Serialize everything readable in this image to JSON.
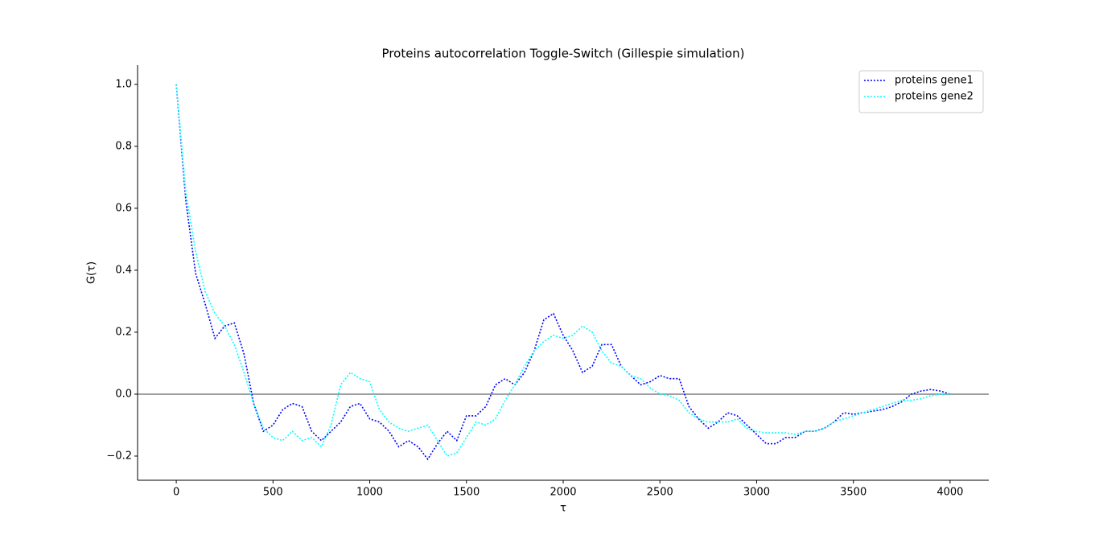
{
  "chart_data": {
    "type": "line",
    "title": "Proteins autocorrelation Toggle-Switch (Gillespie simulation)",
    "x_label": "τ",
    "y_label": "G(τ)",
    "x": [
      0,
      50,
      100,
      150,
      200,
      250,
      300,
      350,
      400,
      450,
      500,
      550,
      600,
      650,
      700,
      750,
      800,
      850,
      900,
      950,
      1000,
      1050,
      1100,
      1150,
      1200,
      1250,
      1300,
      1350,
      1400,
      1450,
      1500,
      1550,
      1600,
      1650,
      1700,
      1750,
      1800,
      1850,
      1900,
      1950,
      2000,
      2050,
      2100,
      2150,
      2200,
      2250,
      2300,
      2350,
      2400,
      2450,
      2500,
      2550,
      2600,
      2650,
      2700,
      2750,
      2800,
      2850,
      2900,
      2950,
      3000,
      3050,
      3100,
      3150,
      3200,
      3250,
      3300,
      3350,
      3400,
      3450,
      3500,
      3550,
      3600,
      3650,
      3700,
      3750,
      3800,
      3850,
      3900,
      3950,
      4000
    ],
    "series": [
      {
        "name": "proteins gene1",
        "color": "#0000ff",
        "values": [
          1.0,
          0.62,
          0.39,
          0.29,
          0.18,
          0.22,
          0.23,
          0.13,
          -0.03,
          -0.12,
          -0.1,
          -0.05,
          -0.03,
          -0.04,
          -0.12,
          -0.15,
          -0.12,
          -0.09,
          -0.04,
          -0.03,
          -0.08,
          -0.09,
          -0.12,
          -0.17,
          -0.15,
          -0.17,
          -0.21,
          -0.16,
          -0.12,
          -0.15,
          -0.07,
          -0.07,
          -0.04,
          0.03,
          0.05,
          0.03,
          0.07,
          0.14,
          0.24,
          0.26,
          0.19,
          0.14,
          0.07,
          0.09,
          0.16,
          0.16,
          0.09,
          0.06,
          0.03,
          0.04,
          0.06,
          0.05,
          0.05,
          -0.04,
          -0.08,
          -0.11,
          -0.09,
          -0.06,
          -0.07,
          -0.1,
          -0.13,
          -0.16,
          -0.16,
          -0.14,
          -0.14,
          -0.12,
          -0.12,
          -0.11,
          -0.09,
          -0.06,
          -0.065,
          -0.06,
          -0.055,
          -0.05,
          -0.04,
          -0.025,
          0.0,
          0.01,
          0.015,
          0.01,
          0.0
        ]
      },
      {
        "name": "proteins gene2",
        "color": "#00ffff",
        "values": [
          1.0,
          0.65,
          0.46,
          0.33,
          0.26,
          0.22,
          0.16,
          0.07,
          -0.03,
          -0.11,
          -0.14,
          -0.15,
          -0.12,
          -0.15,
          -0.14,
          -0.17,
          -0.1,
          0.03,
          0.07,
          0.05,
          0.04,
          -0.05,
          -0.09,
          -0.11,
          -0.12,
          -0.11,
          -0.1,
          -0.15,
          -0.2,
          -0.19,
          -0.14,
          -0.09,
          -0.1,
          -0.08,
          -0.02,
          0.03,
          0.09,
          0.14,
          0.17,
          0.19,
          0.18,
          0.19,
          0.22,
          0.2,
          0.14,
          0.1,
          0.09,
          0.06,
          0.05,
          0.02,
          0.0,
          -0.005,
          -0.02,
          -0.06,
          -0.08,
          -0.09,
          -0.09,
          -0.09,
          -0.08,
          -0.11,
          -0.12,
          -0.125,
          -0.125,
          -0.125,
          -0.13,
          -0.12,
          -0.12,
          -0.11,
          -0.09,
          -0.08,
          -0.07,
          -0.06,
          -0.05,
          -0.04,
          -0.03,
          -0.02,
          -0.02,
          -0.015,
          -0.005,
          0.0,
          0.0
        ]
      }
    ],
    "xlim": [
      -200,
      4200
    ],
    "ylim": [
      -0.278,
      1.062
    ],
    "xticks": [
      0,
      500,
      1000,
      1500,
      2000,
      2500,
      3000,
      3500,
      4000
    ],
    "yticks": [
      {
        "value": -0.2,
        "label": "−0.2"
      },
      {
        "value": 0,
        "label": "0.0"
      },
      0.2,
      0.4,
      0.6,
      0.8,
      {
        "value": 1,
        "label": "1.0"
      }
    ],
    "reference_line": 0,
    "reference_line_color": "#808080",
    "line_style": "dotted",
    "legend": "upper right",
    "grid": false
  }
}
